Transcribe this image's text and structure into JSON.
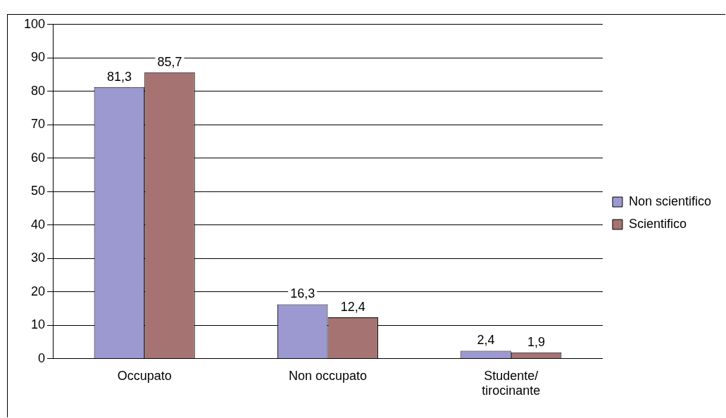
{
  "chart_data": {
    "type": "bar",
    "categories": [
      "Occupato",
      "Non occupato",
      "Studente/ tirocinante"
    ],
    "series": [
      {
        "name": "Non scientifico",
        "color": "#9b99cf",
        "values": [
          81.3,
          16.3,
          2.4
        ],
        "value_labels": [
          "81,3",
          "16,3",
          "2,4"
        ]
      },
      {
        "name": "Scientifico",
        "color": "#a67373",
        "values": [
          85.7,
          12.4,
          1.9
        ],
        "value_labels": [
          "85,7",
          "12,4",
          "1,9"
        ]
      }
    ],
    "ylim": [
      0,
      100
    ],
    "yticks": [
      0,
      10,
      20,
      30,
      40,
      50,
      60,
      70,
      80,
      90,
      100
    ],
    "grid": "y",
    "legend": "right"
  }
}
